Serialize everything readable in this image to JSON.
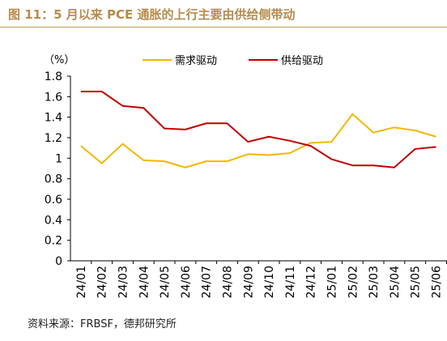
{
  "figure_title": "图 11：5 月以来 PCE 通胀的上行主要由供给侧带动",
  "source_note": "资料来源：FRBSF，德邦研究所",
  "chart_data": {
    "type": "line",
    "unit_label": "（%）",
    "categories": [
      "24/01",
      "24/02",
      "24/03",
      "24/04",
      "24/05",
      "24/06",
      "24/07",
      "24/08",
      "24/09",
      "24/10",
      "24/11",
      "24/12",
      "25/01",
      "25/02",
      "25/03",
      "25/04",
      "25/05",
      "25/06"
    ],
    "series": [
      {
        "name": "需求驱动",
        "color": "#f2b800",
        "values": [
          1.12,
          0.95,
          1.14,
          0.98,
          0.97,
          0.91,
          0.97,
          0.97,
          1.04,
          1.03,
          1.05,
          1.15,
          1.16,
          1.43,
          1.25,
          1.3,
          1.27,
          1.21
        ]
      },
      {
        "name": "供给驱动",
        "color": "#c00000",
        "values": [
          1.65,
          1.65,
          1.51,
          1.49,
          1.29,
          1.28,
          1.34,
          1.34,
          1.16,
          1.21,
          1.17,
          1.12,
          0.99,
          0.93,
          0.93,
          0.91,
          1.09,
          1.11
        ]
      }
    ],
    "ylim": [
      0,
      1.8
    ],
    "yticks": [
      "0",
      "0.2",
      "0.4",
      "0.6",
      "0.8",
      "1",
      "1.2",
      "1.4",
      "1.6",
      "1.8"
    ],
    "grid": false,
    "legend_position": "top"
  }
}
